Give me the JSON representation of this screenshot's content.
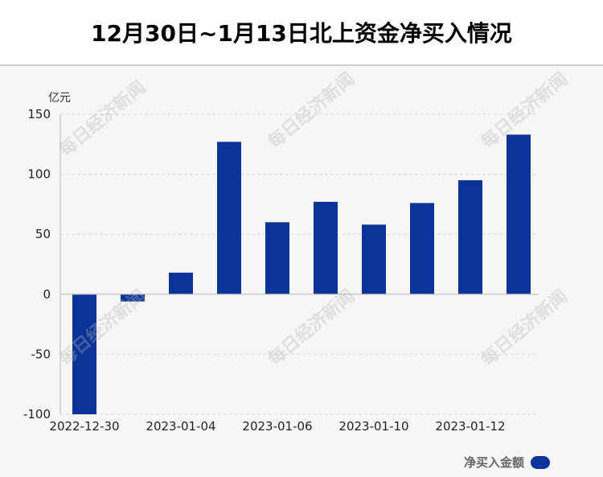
{
  "title": "12月30日~1月13日北上资金净买入情况",
  "watermark": "每日经济新闻",
  "legend": {
    "label": "净买入金额"
  },
  "colors": {
    "bar": "#0b3399",
    "grid": "#d9d9d9",
    "axis": "#bdbdbd"
  },
  "chart_data": {
    "type": "bar",
    "title": "12月30日~1月13日北上资金净买入情况",
    "ylabel": "亿元",
    "ylim": [
      -100,
      150
    ],
    "yticks": [
      150,
      100,
      50,
      0,
      -50,
      -100
    ],
    "xticks": [
      "2022-12-30",
      "2023-01-04",
      "2023-01-06",
      "2023-01-10",
      "2023-01-12"
    ],
    "categories": [
      "2022-12-30",
      "2023-01-03",
      "2023-01-04",
      "2023-01-05",
      "2023-01-06",
      "2023-01-09",
      "2023-01-10",
      "2023-01-11",
      "2023-01-12",
      "2023-01-13"
    ],
    "series": [
      {
        "name": "净买入金额",
        "values": [
          -100,
          -6,
          18,
          127,
          60,
          77,
          58,
          76,
          95,
          133
        ]
      }
    ],
    "grid": true,
    "legend_position": "bottom-right"
  }
}
